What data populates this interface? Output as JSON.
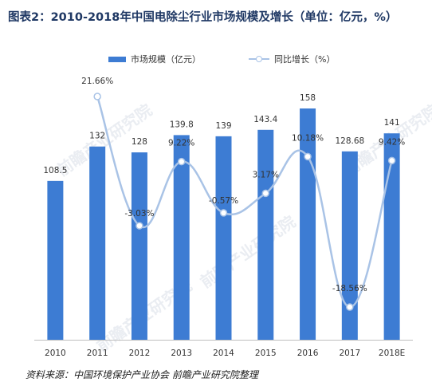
{
  "title": "图表2：2010-2018年中国电除尘行业市场规模及增长（单位：亿元，%）",
  "legend": {
    "bar_label": "市场规模（亿元）",
    "line_label": "同比增长（%）"
  },
  "source": "资料来源：中国环境保护产业协会 前瞻产业研究院整理",
  "watermark": "前瞻产业研究院",
  "colors": {
    "bar": "#3d7cd3",
    "line": "#a9c3e6",
    "marker_fill": "#ffffff",
    "text": "#333333",
    "title": "#1f3864"
  },
  "chart_data": {
    "type": "bar",
    "categories": [
      "2010",
      "2011",
      "2012",
      "2013",
      "2014",
      "2015",
      "2016",
      "2017",
      "2018E"
    ],
    "series": [
      {
        "name": "市场规模（亿元）",
        "type": "bar",
        "values": [
          108.5,
          132,
          128,
          139.8,
          139,
          143.4,
          158,
          128.68,
          141
        ],
        "labels": [
          "108.5",
          "132",
          "128",
          "139.8",
          "139",
          "143.4",
          "158",
          "128.68",
          "141"
        ]
      },
      {
        "name": "同比增长（%）",
        "type": "line",
        "smooth": true,
        "values": [
          null,
          21.66,
          -3.03,
          9.22,
          -0.57,
          3.17,
          10.18,
          -18.56,
          9.42
        ],
        "labels": [
          "",
          "21.66%",
          "-3.03%",
          "9.22%",
          "-0.57%",
          "3.17%",
          "10.18%",
          "-18.56%",
          "9.42%"
        ]
      }
    ],
    "bar_ylim": [
      0,
      165
    ],
    "line_ylim": [
      -22,
      26
    ],
    "legend_position": "top",
    "grid": false
  }
}
